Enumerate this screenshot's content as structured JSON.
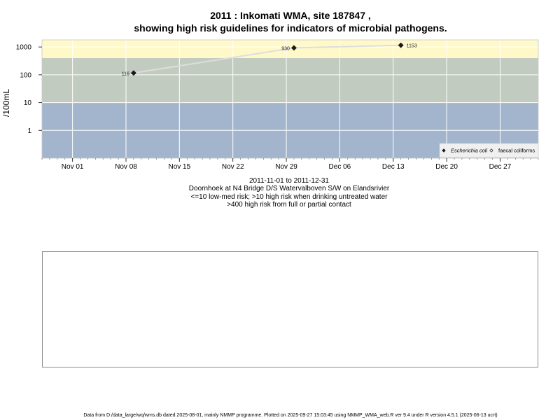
{
  "title_line1": "2011 : Inkomati WMA, site 187847 ,",
  "title_line2": "showing high risk guidelines for indicators of microbial pathogens.",
  "subtitle": {
    "date_range": "2011-11-01 to 2011-12-31",
    "site_name": "Doornhoek at N4 Bridge D/S Watervalboven S/W on Elandsrivier",
    "guideline_1": "<=10 low-med risk; >10 high risk when drinking untreated water",
    "guideline_2": ">400 high risk from full or partial contact"
  },
  "footer": "Data from D:/data_large/wq/wms.db dated 2025-08-01, mainly NMMP programme. Plotted on 2025-09-27 15:03:45 using NMMP_WMA_web.R ver 9.4 under R version 4.5.1 (2025-06-13 ucrt)",
  "colors": {
    "band_low": "#a3b5cc",
    "band_mid": "#c2cbbf",
    "band_high": "#fff9c9",
    "series_line": "#dddddd",
    "marker": "#1a1a1a",
    "grid": "#ffffff"
  },
  "chart_data": {
    "type": "line",
    "title": "2011 : Inkomati WMA, site 187847 , showing high risk guidelines for indicators of microbial pathogens.",
    "xlabel": "",
    "ylabel": "/100mL",
    "y_scale": "log10",
    "xlim": [
      "2011-10-28",
      "2012-01-01"
    ],
    "ylim": [
      0.1,
      1800
    ],
    "x_ticks": [
      "2011-11-01",
      "2011-11-08",
      "2011-11-15",
      "2011-11-22",
      "2011-11-29",
      "2011-12-06",
      "2011-12-13",
      "2011-12-20",
      "2011-12-27"
    ],
    "x_tick_labels": [
      "Nov 01",
      "Nov 08",
      "Nov 15",
      "Nov 22",
      "Nov 29",
      "Dec 06",
      "Dec 13",
      "Dec 20",
      "Dec 27"
    ],
    "y_ticks": [
      1,
      10,
      100,
      1000
    ],
    "y_tick_labels": [
      "1",
      "10",
      "100",
      "1000"
    ],
    "grid": true,
    "risk_bands": [
      {
        "from": 0.1,
        "to": 10,
        "color": "#a3b5cc"
      },
      {
        "from": 10,
        "to": 400,
        "color": "#c2cbbf"
      },
      {
        "from": 400,
        "to": 1800,
        "color": "#fff9c9"
      }
    ],
    "series": [
      {
        "name": "Escherichia coli",
        "marker": "filled-diamond",
        "points": [
          {
            "x": "2011-11-09",
            "y": 116,
            "label": "116"
          },
          {
            "x": "2011-11-30",
            "y": 930,
            "label": "930"
          },
          {
            "x": "2011-12-14",
            "y": 1153,
            "label": "1153"
          }
        ]
      },
      {
        "name": "faecal coliforms",
        "marker": "open-diamond",
        "points": []
      }
    ],
    "legend_placement": "bottom-right"
  }
}
